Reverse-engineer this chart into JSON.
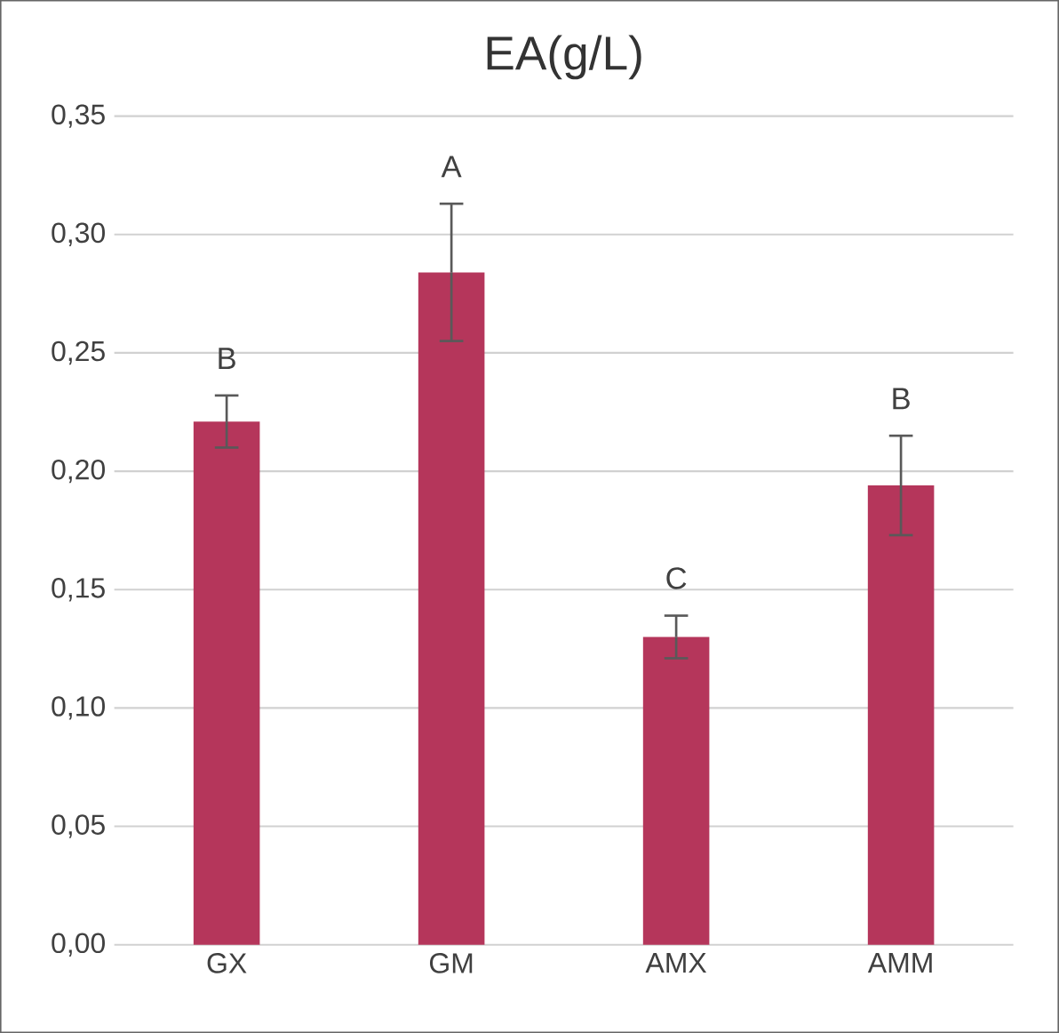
{
  "chart_data": {
    "type": "bar",
    "title": "EA(g/L)",
    "categories": [
      "GX",
      "GM",
      "AMX",
      "AMM"
    ],
    "values": [
      0.221,
      0.284,
      0.13,
      0.194
    ],
    "errors": [
      0.011,
      0.029,
      0.009,
      0.021
    ],
    "color": "#b5365b",
    "ylim": [
      0,
      0.35
    ],
    "yticks": [
      {
        "value": 0,
        "label": "0,00"
      },
      {
        "value": 0.05,
        "label": "0,05"
      },
      {
        "value": 0.1,
        "label": "0,10"
      },
      {
        "value": 0.15,
        "label": "0,15"
      },
      {
        "value": 0.2,
        "label": "0,20"
      },
      {
        "value": 0.25,
        "label": "0,25"
      },
      {
        "value": 0.3,
        "label": "0,30"
      },
      {
        "value": 0.35,
        "label": "0,35"
      }
    ],
    "grid": "y",
    "annotations": [
      "B",
      "A",
      "C",
      "B"
    ]
  }
}
